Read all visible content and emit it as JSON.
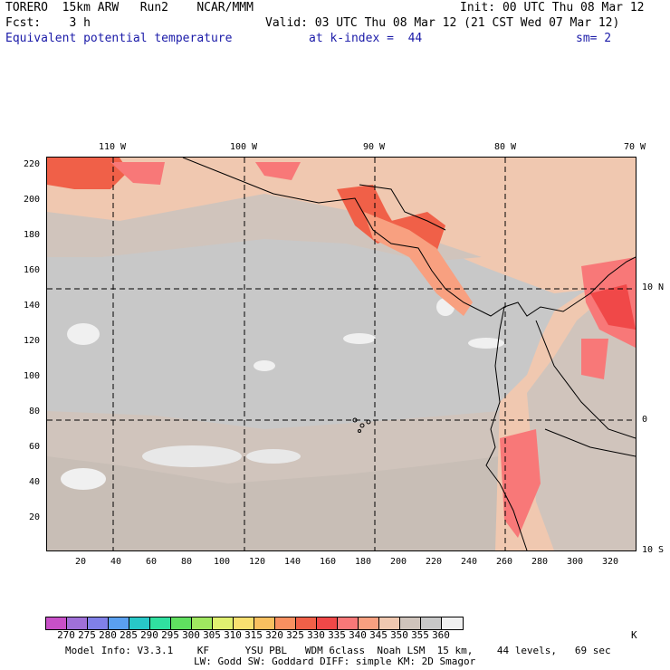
{
  "header": {
    "model": "TORERO  15km ARW   Run2    NCAR/MMM",
    "init": "Init: 00 UTC Thu 08 Mar 12",
    "fcst": "Fcst:    3 h",
    "valid": "Valid: 03 UTC Thu 08 Mar 12 (21 CST Wed 07 Mar 12)",
    "field": "Equivalent potential temperature",
    "level": "at k-index =  44",
    "smooth": "sm= 2"
  },
  "map": {
    "lon_labels": [
      "110 W",
      "100 W",
      "90 W",
      "80 W",
      "70 W"
    ],
    "lat_labels": [
      "10 N",
      "0",
      "10 S"
    ],
    "y_ticks": [
      "220",
      "200",
      "180",
      "160",
      "140",
      "120",
      "100",
      "80",
      "60",
      "40",
      "20"
    ],
    "x_ticks": [
      "20",
      "40",
      "60",
      "80",
      "100",
      "120",
      "140",
      "160",
      "180",
      "200",
      "220",
      "240",
      "260",
      "280",
      "300",
      "320"
    ]
  },
  "legend": {
    "labels": [
      "270",
      "275",
      "280",
      "285",
      "290",
      "295",
      "300",
      "305",
      "310",
      "315",
      "320",
      "325",
      "330",
      "335",
      "340",
      "345",
      "350",
      "355",
      "360"
    ],
    "unit": "K",
    "colors": [
      "#c850c8",
      "#a070d8",
      "#8080e8",
      "#5aa0f0",
      "#28c8c8",
      "#30e0a0",
      "#60e060",
      "#a0e860",
      "#e0f070",
      "#f8e070",
      "#f8c060",
      "#f89060",
      "#f06048",
      "#f04848",
      "#f87878",
      "#f8a080",
      "#f0c8b0",
      "#d0c4bc",
      "#c8c8c8",
      "#f0f0f0"
    ]
  },
  "footer": {
    "line1": "Model Info: V3.3.1    KF      YSU PBL   WDM 6class  Noah LSM  15 km,    44 levels,   69 sec",
    "line2": "LW: Godd SW: Goddard DIFF: simple KM: 2D Smagor"
  }
}
